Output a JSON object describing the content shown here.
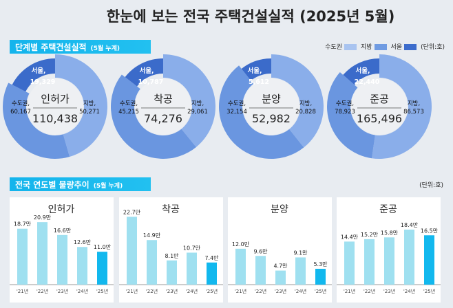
{
  "title": "한눈에 보는 전국 주택건설실적 (2025년 5월)",
  "section1": {
    "title": "단계별 주택건설실적",
    "note": "(5월 누계)"
  },
  "section2": {
    "title": "전국 연도별 물량추이",
    "note": "(5월 누계)"
  },
  "legend": {
    "items": [
      {
        "label": "수도권",
        "color": "#a9c4f0"
      },
      {
        "label": "지방",
        "color": "#6f9be2"
      },
      {
        "label": "서울",
        "color": "#3c6ccc"
      }
    ],
    "unit": "(단위:호)"
  },
  "unit2": "(단위:호)",
  "colors": {
    "local": "#8aaeea",
    "capital": "#6a96e0",
    "seoul": "#3b6bca",
    "bar": "#9fe0f0",
    "bar_current": "#12b8ee"
  },
  "chart_data": [
    {
      "type": "pie",
      "title": "인허가",
      "total": "110,438",
      "slices": [
        {
          "name": "지방",
          "label": "지방,",
          "value": 50271,
          "text": "50,271"
        },
        {
          "name": "수도권",
          "label": "수도권,",
          "value": 60167,
          "text": "60,167"
        },
        {
          "name": "서울",
          "label": "서울,",
          "value": 19329,
          "text": "19,329"
        }
      ]
    },
    {
      "type": "pie",
      "title": "착공",
      "total": "74,276",
      "slices": [
        {
          "name": "지방",
          "label": "지방,",
          "value": 29061,
          "text": "29,061"
        },
        {
          "name": "수도권",
          "label": "수도권,",
          "value": 45215,
          "text": "45,215"
        },
        {
          "name": "서울",
          "label": "서울,",
          "value": 10787,
          "text": "10,787"
        }
      ]
    },
    {
      "type": "pie",
      "title": "분양",
      "total": "52,982",
      "slices": [
        {
          "name": "지방",
          "label": "지방,",
          "value": 20828,
          "text": "20,828"
        },
        {
          "name": "수도권",
          "label": "수도권,",
          "value": 32154,
          "text": "32,154"
        },
        {
          "name": "서울",
          "label": "서울,",
          "value": 5612,
          "text": "5,612"
        }
      ]
    },
    {
      "type": "pie",
      "title": "준공",
      "total": "165,496",
      "slices": [
        {
          "name": "지방",
          "label": "지방,",
          "value": 86573,
          "text": "86,573"
        },
        {
          "name": "수도권",
          "label": "수도권,",
          "value": 78923,
          "text": "78,923"
        },
        {
          "name": "서울",
          "label": "서울,",
          "value": 22440,
          "text": "22,440"
        }
      ]
    },
    {
      "type": "bar",
      "title": "인허가",
      "categories": [
        "'21년",
        "'22년",
        "'23년",
        "'24년",
        "'25년"
      ],
      "values": [
        18.7,
        20.9,
        16.6,
        12.6,
        11.0
      ],
      "labels": [
        "18.7만",
        "20.9만",
        "16.6만",
        "12.6만",
        "11.0만"
      ]
    },
    {
      "type": "bar",
      "title": "착공",
      "categories": [
        "'21년",
        "'22년",
        "'23년",
        "'24년",
        "'25년"
      ],
      "values": [
        22.7,
        14.9,
        8.1,
        10.7,
        7.4
      ],
      "labels": [
        "22.7만",
        "14.9만",
        "8.1만",
        "10.7만",
        "7.4만"
      ]
    },
    {
      "type": "bar",
      "title": "분양",
      "categories": [
        "'21년",
        "'22년",
        "'23년",
        "'24년",
        "'25년"
      ],
      "values": [
        12.0,
        9.6,
        4.7,
        9.1,
        5.3
      ],
      "labels": [
        "12.0만",
        "9.6만",
        "4.7만",
        "9.1만",
        "5.3만"
      ]
    },
    {
      "type": "bar",
      "title": "준공",
      "categories": [
        "'21년",
        "'22년",
        "'23년",
        "'24년",
        "'25년"
      ],
      "values": [
        14.4,
        15.2,
        15.8,
        18.4,
        16.5
      ],
      "labels": [
        "14.4만",
        "15.2만",
        "15.8만",
        "18.4만",
        "16.5만"
      ]
    }
  ]
}
